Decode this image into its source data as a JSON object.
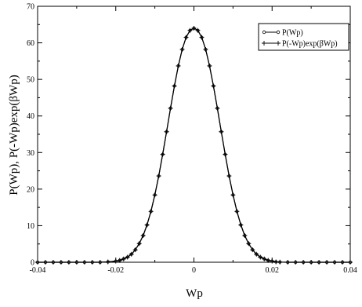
{
  "chart_data": {
    "type": "line",
    "title": "",
    "xlabel": "Wp",
    "ylabel": "P(Wp), P(-Wp)exp(βWp)",
    "xlim": [
      -0.04,
      0.04
    ],
    "ylim": [
      0,
      70
    ],
    "x_ticks": [
      -0.04,
      -0.02,
      0,
      0.02,
      0.04
    ],
    "x_tick_labels": [
      "-0.04",
      "-0.02",
      "0",
      "0.02",
      "0.04"
    ],
    "y_ticks": [
      0,
      10,
      20,
      30,
      40,
      50,
      60,
      70
    ],
    "y_tick_labels": [
      "0",
      "10",
      "20",
      "30",
      "40",
      "50",
      "60",
      "70"
    ],
    "grid": false,
    "legend_position": "top-right",
    "x": [
      -0.04,
      -0.038,
      -0.036,
      -0.034,
      -0.032,
      -0.03,
      -0.028,
      -0.026,
      -0.024,
      -0.022,
      -0.02,
      -0.019,
      -0.018,
      -0.017,
      -0.016,
      -0.015,
      -0.014,
      -0.013,
      -0.012,
      -0.011,
      -0.01,
      -0.009,
      -0.008,
      -0.007,
      -0.006,
      -0.005,
      -0.004,
      -0.003,
      -0.002,
      -0.001,
      0,
      0.001,
      0.002,
      0.003,
      0.004,
      0.005,
      0.006,
      0.007,
      0.008,
      0.009,
      0.01,
      0.011,
      0.012,
      0.013,
      0.014,
      0.015,
      0.016,
      0.017,
      0.018,
      0.019,
      0.02,
      0.021,
      0.022,
      0.024,
      0.026,
      0.028,
      0.03,
      0.032,
      0.034,
      0.036,
      0.038,
      0.04
    ],
    "series": [
      {
        "name": "P(Wp)",
        "marker": "circle",
        "values": [
          0,
          0,
          0,
          0,
          0,
          0,
          0,
          0,
          0,
          0.1,
          0.3,
          0.5,
          0.9,
          1.4,
          2.2,
          3.4,
          5.1,
          7.3,
          10.2,
          13.9,
          18.4,
          23.6,
          29.5,
          35.7,
          42.1,
          48.2,
          53.7,
          58.2,
          61.5,
          63.4,
          64.0,
          63.4,
          61.5,
          58.2,
          53.7,
          48.2,
          42.1,
          35.7,
          29.5,
          23.6,
          18.4,
          13.9,
          10.2,
          7.3,
          5.1,
          3.4,
          2.2,
          1.4,
          0.9,
          0.5,
          0.3,
          0.1,
          0.05,
          0,
          0,
          0,
          0,
          0,
          0,
          0,
          0,
          0
        ]
      },
      {
        "name": "P(-Wp)exp(βWp)",
        "marker": "plus",
        "values": [
          0,
          0,
          0,
          0,
          0,
          0,
          0,
          0,
          0,
          0.1,
          0.3,
          0.5,
          0.9,
          1.4,
          2.2,
          3.4,
          5.1,
          7.3,
          10.2,
          13.9,
          18.4,
          23.6,
          29.5,
          35.7,
          42.1,
          48.2,
          53.7,
          58.2,
          61.5,
          63.4,
          64.0,
          63.4,
          61.5,
          58.2,
          53.7,
          48.2,
          42.1,
          35.7,
          29.5,
          23.6,
          18.4,
          13.9,
          10.2,
          7.3,
          5.1,
          3.4,
          2.2,
          1.4,
          0.9,
          0.5,
          0.3,
          0.1,
          0.05,
          0,
          0,
          0,
          0,
          0,
          0,
          0,
          0,
          0
        ]
      }
    ]
  }
}
